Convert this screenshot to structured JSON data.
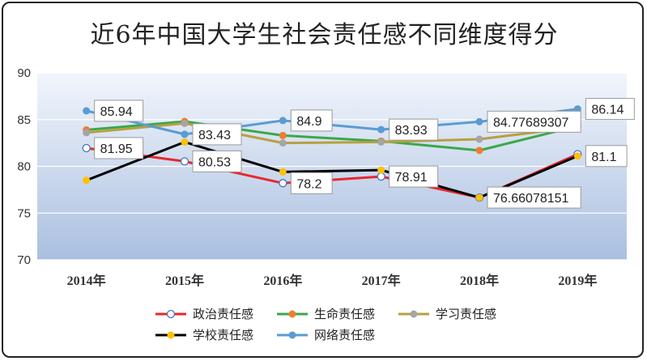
{
  "chart_data": {
    "type": "line",
    "title": "近6年中国大学生社会责任感不同维度得分",
    "categories": [
      "2014年",
      "2015年",
      "2016年",
      "2017年",
      "2018年",
      "2019年"
    ],
    "ylim": [
      70,
      90
    ],
    "yticks": [
      70,
      75,
      80,
      85,
      90
    ],
    "legend_position": "bottom",
    "series": [
      {
        "name": "政治责任感",
        "color": "#e8282b",
        "marker_fill": "#ffffff",
        "values": [
          81.95,
          80.53,
          78.2,
          78.91,
          76.66,
          81.3
        ]
      },
      {
        "name": "生命责任感",
        "color": "#3aa84a",
        "marker_fill": "#ed7d31",
        "values": [
          83.9,
          84.8,
          83.3,
          82.7,
          81.7,
          84.3
        ]
      },
      {
        "name": "学习责任感",
        "color": "#b8a040",
        "marker_fill": "#a5a5a5",
        "values": [
          83.6,
          84.6,
          82.5,
          82.6,
          82.9,
          84.2
        ]
      },
      {
        "name": "学校责任感",
        "color": "#000000",
        "marker_fill": "#ffc000",
        "values": [
          78.5,
          82.6,
          79.4,
          79.6,
          76.66078151,
          81.1
        ]
      },
      {
        "name": "网络责任感",
        "color": "#5b9bd5",
        "marker_fill": "#5b9bd5",
        "values": [
          85.94,
          83.43,
          84.9,
          83.93,
          84.77689307,
          86.14
        ]
      }
    ],
    "data_labels": [
      {
        "text": "85.94",
        "category": "2014年",
        "value": 85.94
      },
      {
        "text": "81.95",
        "category": "2014年",
        "value": 81.95
      },
      {
        "text": "83.43",
        "category": "2015年",
        "value": 83.43
      },
      {
        "text": "80.53",
        "category": "2015年",
        "value": 80.53
      },
      {
        "text": "84.9",
        "category": "2016年",
        "value": 84.9
      },
      {
        "text": "78.2",
        "category": "2016年",
        "value": 78.2
      },
      {
        "text": "83.93",
        "category": "2017年",
        "value": 83.93
      },
      {
        "text": "78.91",
        "category": "2017年",
        "value": 78.91
      },
      {
        "text": "84.77689307",
        "category": "2018年",
        "value": 84.77689307
      },
      {
        "text": "76.66078151",
        "category": "2018年",
        "value": 76.66078151
      },
      {
        "text": "86.14",
        "category": "2019年",
        "value": 86.14
      },
      {
        "text": "81.1",
        "category": "2019年",
        "value": 81.1
      }
    ]
  }
}
